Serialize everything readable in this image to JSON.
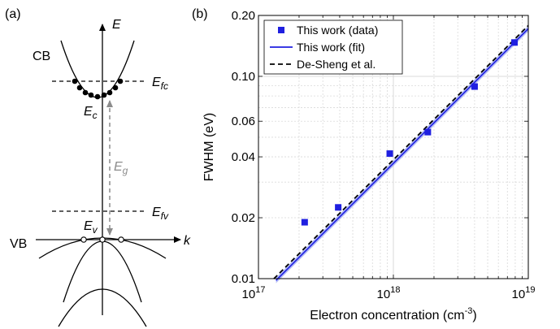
{
  "panel_a": {
    "label": "(a)",
    "axis_e": "E",
    "axis_k": "k",
    "cb": "CB",
    "vb": "VB",
    "efc": "E",
    "efc_sub": "fc",
    "ec": "E",
    "ec_sub": "c",
    "eg": "E",
    "eg_sub": "g",
    "efv": "E",
    "efv_sub": "fv",
    "ev": "E",
    "ev_sub": "v",
    "colors": {
      "gap_arrow": "#8c8c8c",
      "lines": "#000000"
    }
  },
  "panel_b": {
    "label": "(b)",
    "chart_data": {
      "type": "scatter",
      "xscale": "log",
      "yscale": "log",
      "xlim": [
        1e+17,
        1e+19
      ],
      "ylim": [
        0.01,
        0.2
      ],
      "xlabel": "Electron concentration (cm",
      "xlabel_sup": "-3",
      "xlabel_end": ")",
      "ylabel": "FWHM (eV)",
      "grid": true,
      "legend_position": "top-left",
      "xticks": [
        {
          "value": 1e+17,
          "base": "10",
          "exp": "17"
        },
        {
          "value": 1e+18,
          "base": "10",
          "exp": "18"
        },
        {
          "value": 1e+19,
          "base": "10",
          "exp": "19"
        }
      ],
      "yticks": [
        {
          "value": 0.01,
          "label": "0.01"
        },
        {
          "value": 0.02,
          "label": "0.02"
        },
        {
          "value": 0.04,
          "label": "0.04"
        },
        {
          "value": 0.06,
          "label": "0.06"
        },
        {
          "value": 0.1,
          "label": "0.10"
        },
        {
          "value": 0.2,
          "label": "0.20"
        }
      ],
      "series": [
        {
          "name": "This work (data)",
          "kind": "markers",
          "color": "#1f1fe0",
          "x": [
            2.2e+17,
            3.9e+17,
            9.4e+17,
            1.8e+18,
            4e+18,
            7.9e+18
          ],
          "y": [
            0.019,
            0.0225,
            0.0415,
            0.053,
            0.089,
            0.147
          ]
        },
        {
          "name": "This work (fit)",
          "kind": "line",
          "color": "#1f1fe0",
          "band_color": "#9aa6f2",
          "x": [
            1.35e+17,
            1e+19
          ],
          "y": [
            0.0098,
            0.172
          ]
        },
        {
          "name": "De-Sheng et al.",
          "kind": "dashed",
          "color": "#000000",
          "x": [
            1.3e+17,
            1e+19
          ],
          "y": [
            0.0098,
            0.175
          ]
        }
      ]
    }
  }
}
